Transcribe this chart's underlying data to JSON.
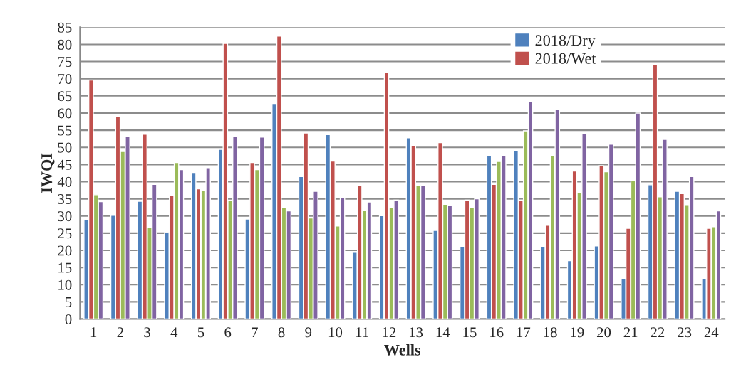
{
  "chart_data": {
    "type": "bar",
    "xlabel": "Wells",
    "ylabel": "IWQI",
    "categories": [
      "1",
      "2",
      "3",
      "4",
      "5",
      "6",
      "7",
      "8",
      "9",
      "10",
      "11",
      "12",
      "13",
      "14",
      "15",
      "16",
      "17",
      "18",
      "19",
      "20",
      "21",
      "22",
      "23",
      "24"
    ],
    "series": [
      {
        "name": "2018/Dry",
        "color": "#4f81bd",
        "values": [
          29,
          30.2,
          34.3,
          25.2,
          42.7,
          49.4,
          29.1,
          62.8,
          41.5,
          53.7,
          19.4,
          30.1,
          52.8,
          25.8,
          21.1,
          47.6,
          49.1,
          21,
          17,
          21.3,
          11.8,
          39.1,
          37.2,
          11.8
        ]
      },
      {
        "name": "2018/Wet",
        "color": "#c0504d",
        "values": [
          69.6,
          59,
          53.8,
          36.1,
          37.9,
          80.3,
          45.6,
          82.4,
          54.2,
          46,
          38.9,
          71.8,
          50.4,
          51.4,
          34.6,
          39.2,
          34.6,
          27.3,
          43.1,
          44.6,
          26.4,
          74,
          36.5,
          26.4
        ]
      },
      {
        "color": "#9bbb59",
        "values": [
          36.2,
          48.8,
          26.8,
          45.6,
          37.5,
          34.5,
          43.5,
          32.5,
          29.4,
          27.1,
          31.6,
          32.4,
          39,
          33.4,
          32.4,
          45.9,
          54.8,
          47.5,
          36.8,
          42.9,
          40.3,
          35.6,
          33.3,
          26.9
        ]
      },
      {
        "color": "#8064a2",
        "values": [
          34.2,
          53.3,
          39.2,
          43.5,
          44.1,
          53.1,
          53,
          31.5,
          37.2,
          35.3,
          34.1,
          34.6,
          38.9,
          33.2,
          35,
          47.6,
          63.3,
          61,
          54,
          50.9,
          60,
          52.3,
          41.5,
          31.5
        ]
      }
    ],
    "ylim": [
      0,
      85
    ],
    "yticks": [
      0,
      5,
      10,
      15,
      20,
      25,
      30,
      35,
      40,
      45,
      50,
      55,
      60,
      65,
      70,
      75,
      80,
      85
    ],
    "grid": "y",
    "legend": "top right"
  }
}
